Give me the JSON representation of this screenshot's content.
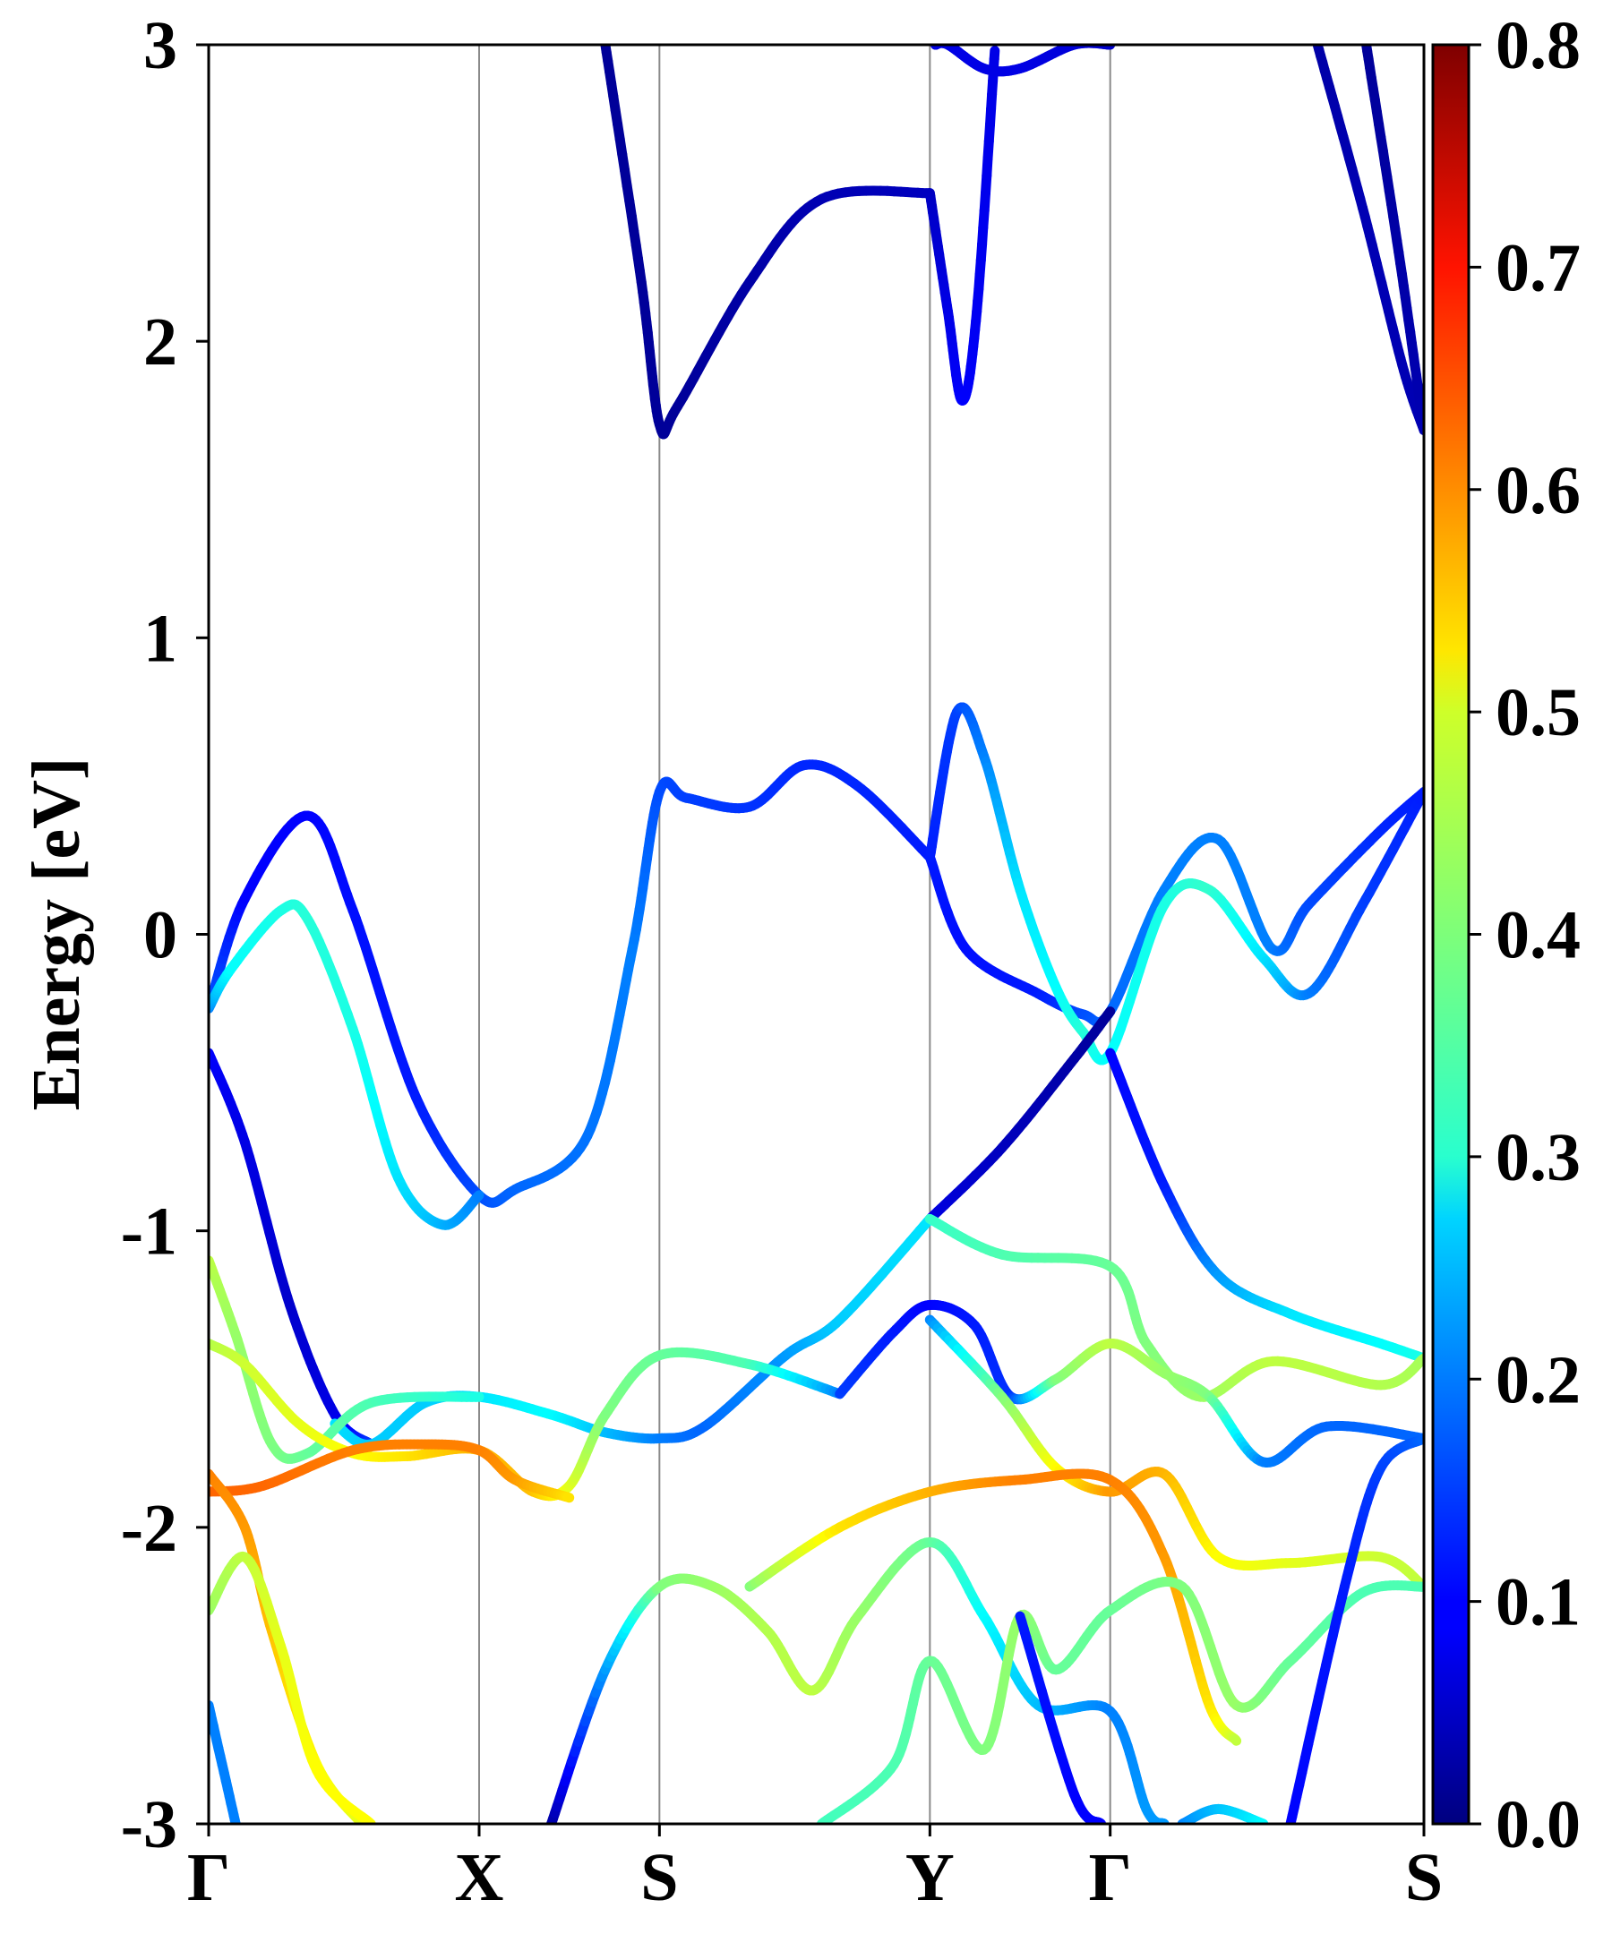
{
  "chart_data": {
    "type": "line",
    "title": "",
    "xlabel": "",
    "ylabel": "Energy [eV]",
    "ylim": [
      -3,
      3
    ],
    "yticks": [
      3,
      2,
      1,
      0,
      -1,
      -2,
      -3
    ],
    "ytick_labels": [
      "3",
      "2",
      "1",
      "0",
      "-1",
      "-2",
      "-3"
    ],
    "x_domain": [
      0,
      6.74
    ],
    "kpoints": [
      {
        "label": "Γ",
        "x": 0
      },
      {
        "label": "X",
        "x": 1.5
      },
      {
        "label": "S",
        "x": 2.5
      },
      {
        "label": "Y",
        "x": 4.0
      },
      {
        "label": "Γ",
        "x": 5.0
      },
      {
        "label": "S",
        "x": 6.74
      }
    ],
    "colorbar": {
      "colormap": "jet",
      "min": 0.0,
      "max": 0.8,
      "ticks": [
        0.8,
        0.7,
        0.6,
        0.5,
        0.4,
        0.3,
        0.2,
        0.1,
        0.0
      ],
      "tick_labels": [
        "0.8",
        "0.7",
        "0.6",
        "0.5",
        "0.4",
        "0.3",
        "0.2",
        "0.1",
        "0.0"
      ]
    },
    "series": [
      {
        "name": "cb-upper-1",
        "points": [
          [
            2.2,
            3.0
          ],
          [
            2.4,
            2.2
          ],
          [
            2.5,
            1.72
          ],
          [
            2.6,
            1.78
          ],
          [
            3.0,
            2.2
          ],
          [
            3.4,
            2.48
          ],
          [
            4.0,
            2.5
          ]
        ],
        "weights": [
          0.02,
          0.02,
          0.02,
          0.02,
          0.03,
          0.04,
          0.05
        ]
      },
      {
        "name": "cb-upper-2",
        "points": [
          [
            4.0,
            2.5
          ],
          [
            4.1,
            2.1
          ],
          [
            4.18,
            1.8
          ],
          [
            4.26,
            2.1
          ],
          [
            4.36,
            2.98
          ]
        ],
        "weights": [
          0.05,
          0.08,
          0.1,
          0.09,
          0.08
        ]
      },
      {
        "name": "cb-upper-3",
        "points": [
          [
            4.03,
            3.0
          ],
          [
            4.1,
            3.0
          ],
          [
            4.3,
            2.92
          ],
          [
            4.5,
            2.92
          ],
          [
            4.8,
            3.0
          ],
          [
            5.0,
            3.0
          ]
        ],
        "weights": [
          0.08,
          0.08,
          0.08,
          0.08,
          0.07,
          0.06
        ]
      },
      {
        "name": "cb-upper-4",
        "points": [
          [
            6.15,
            3.0
          ],
          [
            6.4,
            2.45
          ],
          [
            6.62,
            1.92
          ],
          [
            6.74,
            1.7
          ]
        ],
        "weights": [
          0.03,
          0.04,
          0.04,
          0.04
        ]
      },
      {
        "name": "cb-upper-5",
        "points": [
          [
            6.42,
            3.0
          ],
          [
            6.6,
            2.3
          ],
          [
            6.74,
            1.7
          ]
        ],
        "weights": [
          0.02,
          0.03,
          0.04
        ]
      },
      {
        "name": "vb-1",
        "points": [
          [
            0.0,
            -0.25
          ],
          [
            0.2,
            0.12
          ],
          [
            0.55,
            0.4
          ],
          [
            0.8,
            0.08
          ],
          [
            1.15,
            -0.55
          ],
          [
            1.5,
            -0.88
          ],
          [
            1.7,
            -0.86
          ],
          [
            2.1,
            -0.68
          ],
          [
            2.35,
            -0.05
          ],
          [
            2.5,
            0.48
          ],
          [
            2.65,
            0.46
          ],
          [
            3.0,
            0.43
          ],
          [
            3.3,
            0.57
          ],
          [
            3.6,
            0.5
          ],
          [
            4.0,
            0.26
          ]
        ],
        "weights": [
          0.18,
          0.1,
          0.1,
          0.11,
          0.12,
          0.16,
          0.18,
          0.19,
          0.2,
          0.16,
          0.15,
          0.14,
          0.13,
          0.13,
          0.12
        ]
      },
      {
        "name": "vb-1b",
        "points": [
          [
            4.0,
            0.26
          ],
          [
            4.2,
            -0.05
          ],
          [
            4.6,
            -0.2
          ],
          [
            4.85,
            -0.27
          ],
          [
            5.0,
            -0.26
          ],
          [
            5.3,
            0.15
          ],
          [
            5.6,
            0.32
          ],
          [
            5.9,
            -0.05
          ],
          [
            6.1,
            0.1
          ],
          [
            6.5,
            0.35
          ],
          [
            6.74,
            0.48
          ]
        ],
        "weights": [
          0.12,
          0.11,
          0.12,
          0.16,
          0.18,
          0.2,
          0.2,
          0.2,
          0.16,
          0.13,
          0.12
        ]
      },
      {
        "name": "vb-2",
        "points": [
          [
            0.0,
            -0.25
          ],
          [
            0.12,
            -0.12
          ],
          [
            0.4,
            0.08
          ],
          [
            0.55,
            0.05
          ],
          [
            0.8,
            -0.32
          ],
          [
            1.05,
            -0.82
          ],
          [
            1.3,
            -0.98
          ],
          [
            1.5,
            -0.88
          ]
        ],
        "weights": [
          0.2,
          0.3,
          0.32,
          0.33,
          0.32,
          0.28,
          0.24,
          0.2
        ]
      },
      {
        "name": "vb-3",
        "points": [
          [
            4.0,
            0.26
          ],
          [
            4.15,
            0.75
          ],
          [
            4.3,
            0.6
          ],
          [
            4.5,
            0.15
          ],
          [
            4.7,
            -0.18
          ],
          [
            4.85,
            -0.33
          ],
          [
            5.0,
            -0.4
          ],
          [
            5.3,
            0.1
          ],
          [
            5.55,
            0.15
          ],
          [
            5.85,
            -0.08
          ],
          [
            6.1,
            -0.2
          ],
          [
            6.4,
            0.1
          ],
          [
            6.74,
            0.48
          ]
        ],
        "weights": [
          0.12,
          0.15,
          0.2,
          0.28,
          0.3,
          0.33,
          0.3,
          0.32,
          0.34,
          0.28,
          0.2,
          0.15,
          0.12
        ]
      },
      {
        "name": "vb-4",
        "points": [
          [
            4.0,
            -0.96
          ],
          [
            4.4,
            -0.72
          ],
          [
            4.8,
            -0.42
          ],
          [
            5.0,
            -0.26
          ]
        ],
        "weights": [
          0.08,
          0.05,
          0.03,
          0.02
        ]
      },
      {
        "name": "vb-5",
        "points": [
          [
            0.0,
            -0.4
          ],
          [
            0.2,
            -0.7
          ],
          [
            0.45,
            -1.25
          ],
          [
            0.7,
            -1.62
          ],
          [
            0.9,
            -1.72
          ]
        ],
        "weights": [
          0.1,
          0.08,
          0.06,
          0.08,
          0.15
        ]
      },
      {
        "name": "vb-6",
        "points": [
          [
            5.0,
            -0.4
          ],
          [
            5.3,
            -0.85
          ],
          [
            5.6,
            -1.15
          ],
          [
            6.0,
            -1.28
          ],
          [
            6.5,
            -1.38
          ],
          [
            6.74,
            -1.43
          ]
        ],
        "weights": [
          0.1,
          0.12,
          0.22,
          0.28,
          0.3,
          0.32
        ]
      },
      {
        "name": "vb-7",
        "points": [
          [
            0.7,
            -1.65
          ],
          [
            0.9,
            -1.72
          ],
          [
            1.2,
            -1.58
          ],
          [
            1.5,
            -1.56
          ],
          [
            1.9,
            -1.62
          ],
          [
            2.2,
            -1.68
          ],
          [
            2.5,
            -1.7
          ],
          [
            2.75,
            -1.66
          ],
          [
            3.2,
            -1.42
          ],
          [
            3.5,
            -1.3
          ],
          [
            4.0,
            -0.96
          ]
        ],
        "weights": [
          0.28,
          0.26,
          0.26,
          0.28,
          0.3,
          0.25,
          0.2,
          0.18,
          0.22,
          0.26,
          0.28
        ]
      },
      {
        "name": "vb-8",
        "points": [
          [
            0.0,
            -1.1
          ],
          [
            0.15,
            -1.35
          ],
          [
            0.35,
            -1.72
          ],
          [
            0.55,
            -1.75
          ],
          [
            0.9,
            -1.58
          ],
          [
            1.5,
            -1.56
          ]
        ],
        "weights": [
          0.45,
          0.42,
          0.4,
          0.38,
          0.36,
          0.32
        ]
      },
      {
        "name": "vb-9",
        "points": [
          [
            4.0,
            -0.96
          ],
          [
            4.4,
            -1.08
          ],
          [
            5.0,
            -1.12
          ],
          [
            5.2,
            -1.38
          ],
          [
            5.5,
            -1.56
          ],
          [
            5.9,
            -1.44
          ],
          [
            6.5,
            -1.52
          ],
          [
            6.74,
            -1.43
          ]
        ],
        "weights": [
          0.34,
          0.36,
          0.38,
          0.4,
          0.42,
          0.45,
          0.44,
          0.43
        ]
      },
      {
        "name": "vb-10",
        "points": [
          [
            0.0,
            -1.38
          ],
          [
            0.2,
            -1.45
          ],
          [
            0.5,
            -1.65
          ],
          [
            0.8,
            -1.75
          ],
          [
            1.1,
            -1.76
          ],
          [
            1.5,
            -1.74
          ],
          [
            1.8,
            -1.88
          ],
          [
            2.0,
            -1.86
          ],
          [
            2.2,
            -1.62
          ],
          [
            2.5,
            -1.42
          ],
          [
            3.0,
            -1.45
          ],
          [
            3.5,
            -1.55
          ]
        ],
        "weights": [
          0.44,
          0.46,
          0.48,
          0.5,
          0.52,
          0.56,
          0.55,
          0.48,
          0.4,
          0.38,
          0.36,
          0.2
        ]
      },
      {
        "name": "vb-11",
        "points": [
          [
            3.5,
            -1.55
          ],
          [
            3.8,
            -1.34
          ],
          [
            4.0,
            -1.25
          ],
          [
            4.25,
            -1.32
          ],
          [
            4.45,
            -1.56
          ],
          [
            4.7,
            -1.5
          ],
          [
            5.0,
            -1.38
          ],
          [
            5.3,
            -1.48
          ],
          [
            5.55,
            -1.56
          ],
          [
            5.85,
            -1.78
          ],
          [
            6.2,
            -1.66
          ],
          [
            6.74,
            -1.7
          ]
        ],
        "weights": [
          0.15,
          0.12,
          0.1,
          0.12,
          0.14,
          0.4,
          0.45,
          0.42,
          0.4,
          0.2,
          0.18,
          0.18
        ]
      },
      {
        "name": "vb-12",
        "points": [
          [
            0.0,
            -1.88
          ],
          [
            0.3,
            -1.86
          ],
          [
            0.8,
            -1.74
          ],
          [
            1.2,
            -1.72
          ],
          [
            1.5,
            -1.74
          ],
          [
            1.7,
            -1.84
          ],
          [
            2.0,
            -1.9
          ]
        ],
        "weights": [
          0.62,
          0.62,
          0.6,
          0.6,
          0.6,
          0.58,
          0.52
        ]
      },
      {
        "name": "vb-13",
        "points": [
          [
            4.0,
            -1.3
          ],
          [
            4.4,
            -1.56
          ],
          [
            4.7,
            -1.8
          ],
          [
            5.0,
            -1.88
          ],
          [
            5.3,
            -1.82
          ],
          [
            5.6,
            -2.1
          ],
          [
            6.0,
            -2.12
          ],
          [
            6.5,
            -2.1
          ],
          [
            6.74,
            -2.2
          ]
        ],
        "weights": [
          0.2,
          0.4,
          0.5,
          0.58,
          0.56,
          0.5,
          0.48,
          0.46,
          0.45
        ]
      },
      {
        "name": "vb-14",
        "points": [
          [
            0.0,
            -1.82
          ],
          [
            0.2,
            -2.0
          ],
          [
            0.35,
            -2.35
          ],
          [
            0.6,
            -2.8
          ],
          [
            0.85,
            -3.0
          ]
        ],
        "weights": [
          0.6,
          0.58,
          0.55,
          0.5,
          0.48
        ]
      },
      {
        "name": "vb-15",
        "points": [
          [
            3.0,
            -2.2
          ],
          [
            3.5,
            -2.0
          ],
          [
            4.0,
            -1.88
          ],
          [
            4.5,
            -1.84
          ],
          [
            5.0,
            -1.84
          ],
          [
            5.3,
            -2.1
          ],
          [
            5.55,
            -2.6
          ],
          [
            5.7,
            -2.72
          ]
        ],
        "weights": [
          0.4,
          0.52,
          0.56,
          0.6,
          0.6,
          0.58,
          0.52,
          0.45
        ]
      },
      {
        "name": "vb-16",
        "points": [
          [
            0.0,
            -2.28
          ],
          [
            0.2,
            -2.1
          ],
          [
            0.4,
            -2.4
          ],
          [
            0.6,
            -2.82
          ],
          [
            0.9,
            -3.0
          ]
        ],
        "weights": [
          0.42,
          0.45,
          0.48,
          0.5,
          0.5
        ]
      },
      {
        "name": "vb-17",
        "points": [
          [
            1.9,
            -3.0
          ],
          [
            2.2,
            -2.48
          ],
          [
            2.5,
            -2.2
          ],
          [
            2.8,
            -2.2
          ],
          [
            3.1,
            -2.35
          ],
          [
            3.35,
            -2.55
          ],
          [
            3.6,
            -2.3
          ],
          [
            4.0,
            -2.05
          ],
          [
            4.3,
            -2.3
          ],
          [
            4.6,
            -2.6
          ],
          [
            5.0,
            -2.62
          ],
          [
            5.2,
            -2.95
          ],
          [
            5.3,
            -3.0
          ]
        ],
        "weights": [
          0.02,
          0.22,
          0.4,
          0.42,
          0.44,
          0.45,
          0.42,
          0.38,
          0.3,
          0.25,
          0.2,
          0.22,
          0.22
        ]
      },
      {
        "name": "vb-18",
        "points": [
          [
            3.4,
            -3.0
          ],
          [
            3.8,
            -2.8
          ],
          [
            4.0,
            -2.45
          ],
          [
            4.3,
            -2.75
          ],
          [
            4.5,
            -2.3
          ],
          [
            4.7,
            -2.48
          ],
          [
            5.0,
            -2.28
          ],
          [
            5.4,
            -2.2
          ],
          [
            5.7,
            -2.6
          ],
          [
            6.0,
            -2.45
          ],
          [
            6.4,
            -2.22
          ],
          [
            6.74,
            -2.2
          ]
        ],
        "weights": [
          0.35,
          0.36,
          0.38,
          0.4,
          0.42,
          0.38,
          0.38,
          0.4,
          0.42,
          0.38,
          0.36,
          0.36
        ]
      },
      {
        "name": "vb-19",
        "points": [
          [
            4.5,
            -2.3
          ],
          [
            4.8,
            -2.9
          ],
          [
            4.95,
            -3.0
          ]
        ],
        "weights": [
          0.12,
          0.1,
          0.1
        ]
      },
      {
        "name": "vb-20",
        "points": [
          [
            0.0,
            -2.6
          ],
          [
            0.15,
            -3.0
          ]
        ],
        "weights": [
          0.2,
          0.2
        ]
      },
      {
        "name": "vb-21",
        "points": [
          [
            6.0,
            -3.0
          ],
          [
            6.3,
            -2.2
          ],
          [
            6.5,
            -1.8
          ],
          [
            6.74,
            -1.7
          ]
        ],
        "weights": [
          0.1,
          0.12,
          0.15,
          0.18
        ]
      },
      {
        "name": "vb-22",
        "points": [
          [
            5.4,
            -3.0
          ],
          [
            5.6,
            -2.95
          ],
          [
            5.85,
            -3.0
          ]
        ],
        "weights": [
          0.2,
          0.25,
          0.3
        ]
      }
    ]
  }
}
